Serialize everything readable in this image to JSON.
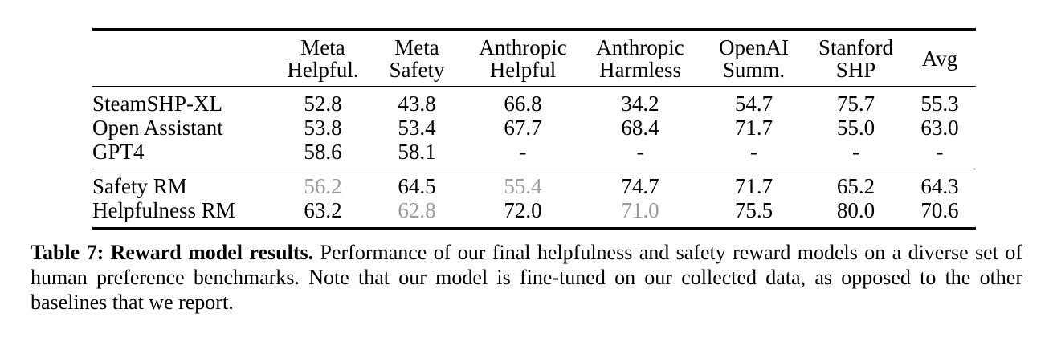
{
  "colors": {
    "text": "#000000",
    "muted": "#9a9a9a",
    "rule": "#000000",
    "background": "#ffffff"
  },
  "table": {
    "header": [
      {
        "lines": [
          "Meta",
          "Helpful."
        ]
      },
      {
        "lines": [
          "Meta",
          "Safety"
        ]
      },
      {
        "lines": [
          "Anthropic",
          "Helpful"
        ]
      },
      {
        "lines": [
          "Anthropic",
          "Harmless"
        ]
      },
      {
        "lines": [
          "OpenAI",
          "Summ."
        ]
      },
      {
        "lines": [
          "Stanford",
          "SHP"
        ]
      },
      {
        "lines": [
          "Avg"
        ]
      }
    ],
    "groups": [
      {
        "rows": [
          {
            "label": "SteamSHP-XL",
            "values": [
              "52.8",
              "43.8",
              "66.8",
              "34.2",
              "54.7",
              "75.7",
              "55.3"
            ],
            "gray": []
          },
          {
            "label": "Open Assistant",
            "values": [
              "53.8",
              "53.4",
              "67.7",
              "68.4",
              "71.7",
              "55.0",
              "63.0"
            ],
            "gray": []
          },
          {
            "label": "GPT4",
            "values": [
              "58.6",
              "58.1",
              "-",
              "-",
              "-",
              "-",
              "-"
            ],
            "gray": []
          }
        ]
      },
      {
        "rows": [
          {
            "label": "Safety RM",
            "values": [
              "56.2",
              "64.5",
              "55.4",
              "74.7",
              "71.7",
              "65.2",
              "64.3"
            ],
            "gray": [
              0,
              2
            ]
          },
          {
            "label": "Helpfulness RM",
            "values": [
              "63.2",
              "62.8",
              "72.0",
              "71.0",
              "75.5",
              "80.0",
              "70.6"
            ],
            "gray": [
              1,
              3
            ]
          }
        ]
      }
    ]
  },
  "caption": {
    "label_bold": "Table 7: Reward model results.",
    "text": " Performance of our final helpfulness and safety reward models on a diverse set of human preference benchmarks. Note that our model is fine-tuned on our collected data, as opposed to the other baselines that we report."
  }
}
